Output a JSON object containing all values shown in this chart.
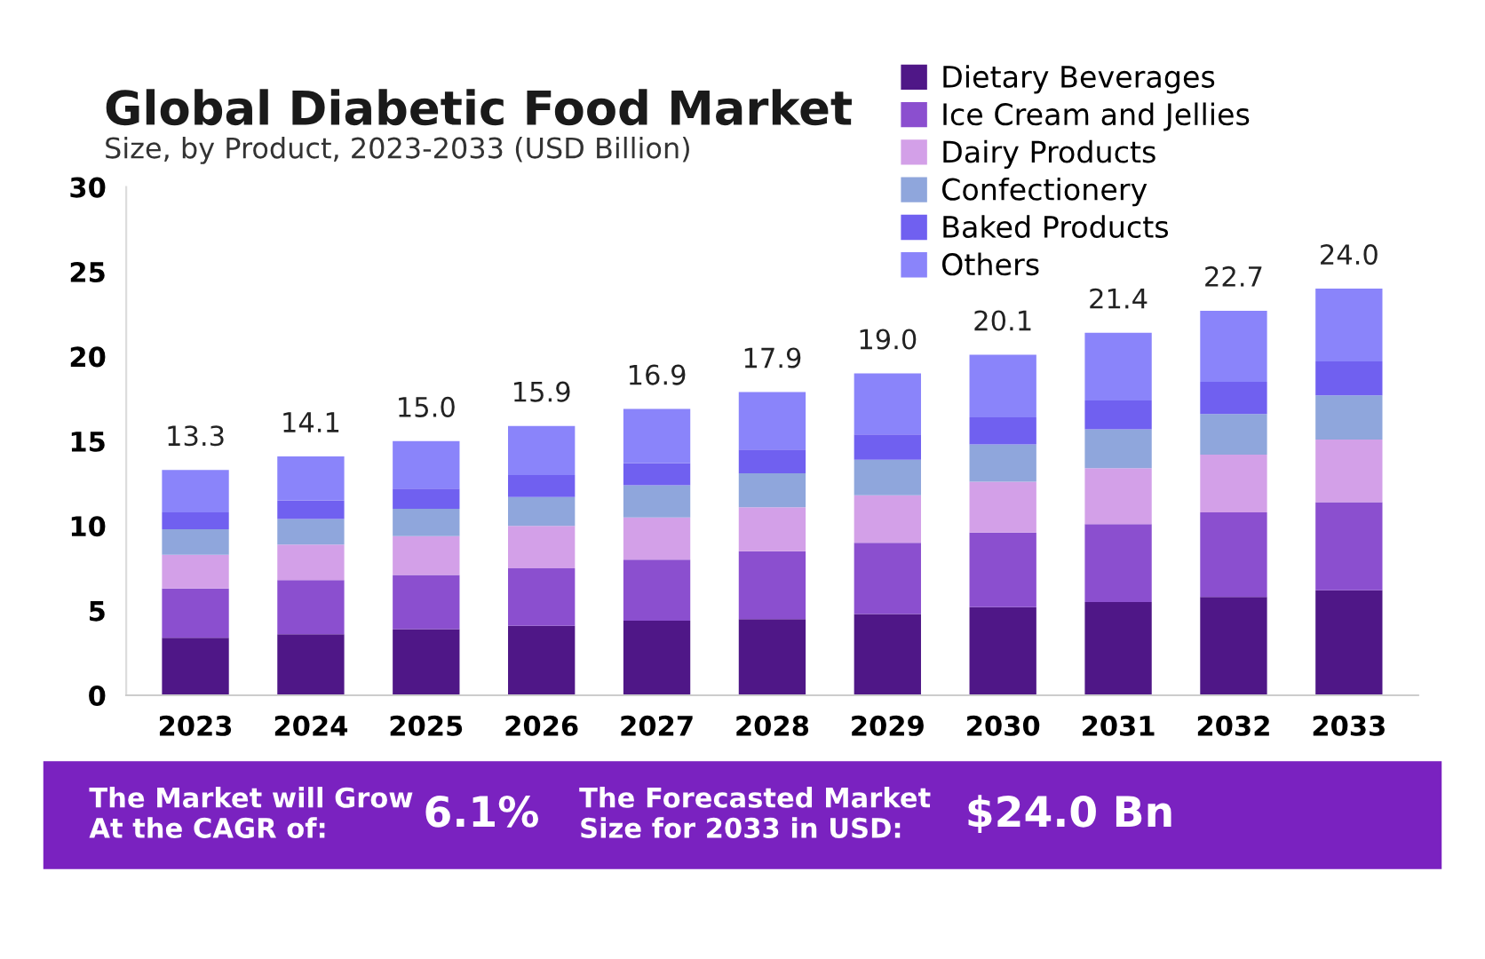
{
  "chart_data": {
    "type": "bar",
    "stacked": true,
    "title": "Global Diabetic Food Market",
    "subtitle": "Size, by Product, 2023-2033 (USD Billion)",
    "categories": [
      "2023",
      "2024",
      "2025",
      "2026",
      "2027",
      "2028",
      "2029",
      "2030",
      "2031",
      "2032",
      "2033"
    ],
    "series": [
      {
        "name": "Dietary Beverages",
        "color": "#4f1787",
        "values": [
          3.4,
          3.6,
          3.9,
          4.1,
          4.4,
          4.5,
          4.8,
          5.2,
          5.5,
          5.8,
          6.2
        ]
      },
      {
        "name": "Ice Cream and Jellies",
        "color": "#8b4fcf",
        "values": [
          2.9,
          3.2,
          3.2,
          3.4,
          3.6,
          4.0,
          4.2,
          4.4,
          4.6,
          5.0,
          5.2
        ]
      },
      {
        "name": "Dairy Products",
        "color": "#d3a0e8",
        "values": [
          2.0,
          2.1,
          2.3,
          2.5,
          2.5,
          2.6,
          2.8,
          3.0,
          3.3,
          3.4,
          3.7
        ]
      },
      {
        "name": "Confectionery",
        "color": "#8fa6dc",
        "values": [
          1.5,
          1.5,
          1.6,
          1.7,
          1.9,
          2.0,
          2.1,
          2.2,
          2.3,
          2.4,
          2.6
        ]
      },
      {
        "name": "Baked Products",
        "color": "#7060f0",
        "values": [
          1.0,
          1.1,
          1.2,
          1.3,
          1.3,
          1.4,
          1.5,
          1.6,
          1.7,
          1.9,
          2.0
        ]
      },
      {
        "name": "Others",
        "color": "#8a84fa",
        "values": [
          2.5,
          2.6,
          2.8,
          2.9,
          3.2,
          3.4,
          3.6,
          3.7,
          4.0,
          4.2,
          4.3
        ]
      }
    ],
    "totals": [
      "13.3",
      "14.1",
      "15.0",
      "15.9",
      "16.9",
      "17.9",
      "19.0",
      "20.1",
      "21.4",
      "22.7",
      "24.0"
    ],
    "ylim": [
      0,
      30
    ],
    "yticks": [
      0,
      5,
      10,
      15,
      20,
      25,
      30
    ],
    "grid": false,
    "legend": "top right",
    "annotations": [
      "The Market will Grow\nAt the CAGR of:",
      "6.1%",
      "The Forecasted Market\nSize for 2033 in USD:",
      "$24.0 Bn"
    ]
  }
}
